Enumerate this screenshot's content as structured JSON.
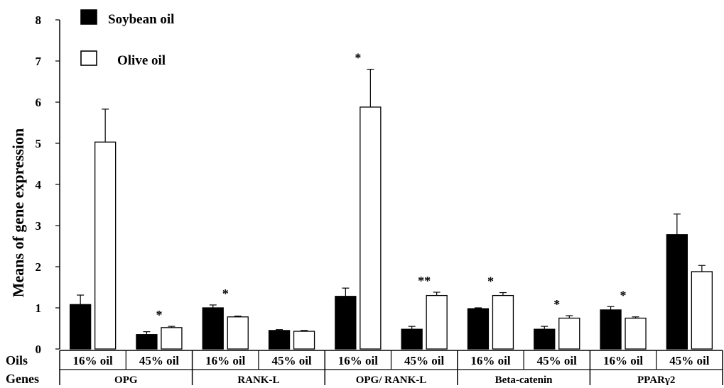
{
  "chart_data": {
    "type": "bar",
    "ylabel": "Means of gene expression",
    "ylim": [
      0,
      8
    ],
    "yticks": [
      "0",
      "1",
      "2",
      "3",
      "4",
      "5",
      "6",
      "7",
      "8"
    ],
    "row_labels": {
      "oils": "Oils",
      "genes": "Genes"
    },
    "categories": [
      {
        "oil": "16% oil",
        "gene": "OPG"
      },
      {
        "oil": "45% oil",
        "gene": "OPG"
      },
      {
        "oil": "16% oil",
        "gene": "RANK-L"
      },
      {
        "oil": "45% oil",
        "gene": "RANK-L"
      },
      {
        "oil": "16% oil",
        "gene": "OPG/ RANK-L"
      },
      {
        "oil": "45% oil",
        "gene": "OPG/ RANK-L"
      },
      {
        "oil": "16% oil",
        "gene": "Beta-catenin"
      },
      {
        "oil": "45% oil",
        "gene": "Beta-catenin"
      },
      {
        "oil": "16% oil",
        "gene": "PPARγ2"
      },
      {
        "oil": "45% oil",
        "gene": "PPARγ2"
      }
    ],
    "genes": [
      "OPG",
      "RANK-L",
      "OPG/ RANK-L",
      "Beta-catenin",
      "PPARγ2"
    ],
    "series": [
      {
        "name": "Soybean oil",
        "color": "#000000",
        "values": [
          1.08,
          0.35,
          1.0,
          0.45,
          1.28,
          0.48,
          0.98,
          0.48,
          0.95,
          2.78
        ],
        "errors": [
          0.23,
          0.07,
          0.07,
          0.02,
          0.2,
          0.07,
          0.02,
          0.07,
          0.08,
          0.5
        ]
      },
      {
        "name": "Olive oil",
        "color": "#ffffff",
        "values": [
          5.03,
          0.52,
          0.78,
          0.43,
          5.88,
          1.3,
          1.3,
          0.75,
          0.75,
          1.88
        ],
        "errors": [
          0.8,
          0.03,
          0.02,
          0.02,
          0.92,
          0.08,
          0.07,
          0.06,
          0.03,
          0.15
        ]
      }
    ],
    "annotations": [
      "",
      "*",
      "*",
      "",
      "*",
      "**",
      "*",
      "*",
      "*",
      ""
    ],
    "legend": "top-left",
    "grid": false
  }
}
